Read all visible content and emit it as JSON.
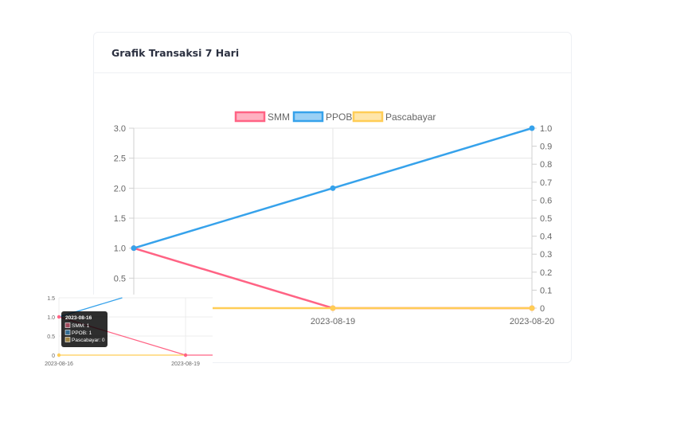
{
  "card": {
    "title": "Grafik Transaksi 7 Hari"
  },
  "colors": {
    "smm": "#ff6384",
    "ppob": "#36a2eb",
    "pascabayar": "#ffcd56"
  },
  "chart_data": {
    "type": "line",
    "title": "",
    "x": [
      "2023-08-16",
      "2023-08-19",
      "2023-08-20"
    ],
    "series": [
      {
        "name": "SMM",
        "values": [
          1,
          0,
          0
        ],
        "axis": "left"
      },
      {
        "name": "PPOB",
        "values": [
          1,
          2,
          3
        ],
        "axis": "left"
      },
      {
        "name": "Pascabayar",
        "values": [
          0,
          0,
          0
        ],
        "axis": "right"
      }
    ],
    "y_left": {
      "range": [
        0,
        3
      ],
      "ticks": [
        "0.5",
        "1.0",
        "1.5",
        "2.0",
        "2.5",
        "3.0"
      ]
    },
    "y_right": {
      "range": [
        0,
        1
      ],
      "ticks": [
        "0",
        "0.1",
        "0.2",
        "0.3",
        "0.4",
        "0.5",
        "0.6",
        "0.7",
        "0.8",
        "0.9",
        "1.0"
      ]
    },
    "x_tick_labels": [
      "2023-08-19",
      "2023-08-20"
    ],
    "legend": "top",
    "grid": true
  },
  "inset": {
    "y_ticks": [
      "0",
      "0.5",
      "1.0",
      "1.5"
    ],
    "x_ticks": [
      "2023-08-16",
      "2023-08-19"
    ],
    "tooltip": {
      "title": "2023-08-16",
      "lines": [
        "SMM: 1",
        "PPOB: 1",
        "Pascabayar: 0"
      ]
    }
  }
}
